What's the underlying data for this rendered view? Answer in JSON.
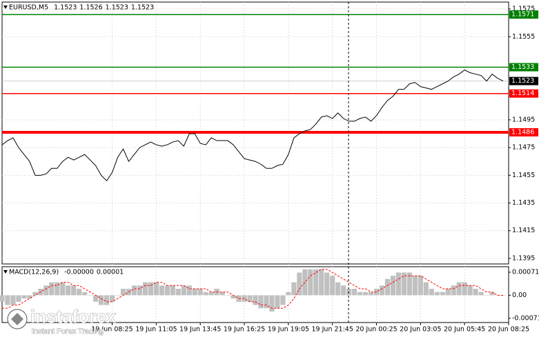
{
  "chart_data": [
    {
      "type": "line",
      "title": "EURUSD,M5",
      "quote": [
        1.1523,
        1.1526,
        1.1523,
        1.1523
      ],
      "x": [
        0,
        1,
        2,
        3,
        4,
        5,
        6,
        7,
        8,
        9,
        10,
        11,
        12,
        13,
        14,
        15,
        16,
        17,
        18,
        19,
        20,
        21,
        22,
        23,
        24,
        25,
        26,
        27,
        28,
        29,
        30,
        31,
        32,
        33,
        34,
        35,
        36,
        37,
        38,
        39,
        40,
        41,
        42,
        43,
        44,
        45,
        46,
        47,
        48,
        49,
        50,
        51,
        52,
        53,
        54,
        55,
        56,
        57,
        58,
        59,
        60,
        61,
        62,
        63,
        64,
        65,
        66,
        67,
        68,
        69,
        70,
        71,
        72,
        73,
        74,
        75,
        76,
        77,
        78,
        79,
        80,
        81,
        82,
        83,
        84,
        85,
        86,
        87,
        88,
        89,
        90,
        91
      ],
      "series": [
        {
          "color": "#000000",
          "values": [
            1.1477,
            1.148,
            1.1482,
            1.1475,
            1.147,
            1.1465,
            1.1455,
            1.1455,
            1.1456,
            1.146,
            1.146,
            1.1465,
            1.1468,
            1.1466,
            1.1468,
            1.147,
            1.1466,
            1.1462,
            1.1455,
            1.1451,
            1.1457,
            1.1468,
            1.1474,
            1.1465,
            1.147,
            1.1475,
            1.1477,
            1.1479,
            1.1477,
            1.1476,
            1.1477,
            1.1479,
            1.148,
            1.1476,
            1.1485,
            1.1485,
            1.1478,
            1.1477,
            1.1482,
            1.148,
            1.148,
            1.148,
            1.1477,
            1.1472,
            1.1467,
            1.1466,
            1.1465,
            1.1463,
            1.146,
            1.146,
            1.1462,
            1.1463,
            1.147,
            1.1482,
            1.1485,
            1.1487,
            1.1488,
            1.1492,
            1.1497,
            1.1498,
            1.1496,
            1.15,
            1.1496,
            1.1494,
            1.1494,
            1.1496,
            1.1497,
            1.1494,
            1.1498,
            1.1504,
            1.1509,
            1.1512,
            1.1517,
            1.1517,
            1.1521,
            1.1522,
            1.1519,
            1.1518,
            1.1517,
            1.1519,
            1.1521,
            1.1523,
            1.1526,
            1.1528,
            1.1531,
            1.1529,
            1.1528,
            1.1527,
            1.1523,
            1.1528,
            1.1525,
            1.1523
          ]
        }
      ],
      "levels": [
        {
          "value": 1.1571,
          "color": "#008000",
          "bold": false
        },
        {
          "value": 1.1533,
          "color": "#008000",
          "bold": false
        },
        {
          "value": 1.1514,
          "color": "#ff0000",
          "bold": false
        },
        {
          "value": 1.1486,
          "color": "#ff0000",
          "bold": true
        }
      ],
      "last_price": 1.1523,
      "xlim": [
        0,
        92
      ],
      "ylim": [
        1.1391,
        1.158
      ],
      "yticks": [
        1.1575,
        1.1555,
        1.1495,
        1.1475,
        1.1455,
        1.1435,
        1.1415,
        1.1395
      ],
      "xticks": [
        {
          "value": 20,
          "label": "19 Jun 08:25"
        },
        {
          "value": 28,
          "label": "19 Jun 11:05"
        },
        {
          "value": 36,
          "label": "19 Jun 13:45"
        },
        {
          "value": 44,
          "label": "19 Jun 16:25"
        },
        {
          "value": 52,
          "label": "19 Jun 19:05"
        },
        {
          "value": 60,
          "label": "19 Jun 21:45"
        },
        {
          "value": 68,
          "label": "20 Jun 00:25"
        },
        {
          "value": 76,
          "label": "20 Jun 03:05"
        },
        {
          "value": 84,
          "label": "20 Jun 05:45"
        },
        {
          "value": 92,
          "label": "20 Jun 08:25"
        }
      ],
      "grid": true
    },
    {
      "type": "bar",
      "title": "MACD(12,26,9)",
      "quote": [
        -0.0,
        1e-05
      ],
      "quote_labels": [
        "-0.00000",
        "0.00001"
      ],
      "x": [
        0,
        1,
        2,
        3,
        4,
        5,
        6,
        7,
        8,
        9,
        10,
        11,
        12,
        13,
        14,
        15,
        16,
        17,
        18,
        19,
        20,
        21,
        22,
        23,
        24,
        25,
        26,
        27,
        28,
        29,
        30,
        31,
        32,
        33,
        34,
        35,
        36,
        37,
        38,
        39,
        40,
        41,
        42,
        43,
        44,
        45,
        46,
        47,
        48,
        49,
        50,
        51,
        52,
        53,
        54,
        55,
        56,
        57,
        58,
        59,
        60,
        61,
        62,
        63,
        64,
        65,
        66,
        67,
        68,
        69,
        70,
        71,
        72,
        73,
        74,
        75,
        76,
        77,
        78,
        79,
        80,
        81,
        82,
        83,
        84,
        85,
        86,
        87,
        88,
        89,
        90,
        91
      ],
      "series": [
        {
          "color": "#c0c0c0",
          "values": [
            -0.0002,
            -0.0003,
            -0.0003,
            -0.0002,
            -0.0001,
            -0.0001,
            0.0001,
            0.0002,
            0.0003,
            0.0004,
            0.0004,
            0.0004,
            0.0003,
            0.0003,
            0.0002,
            0.0001,
            0.0,
            -0.0002,
            -0.0003,
            -0.0003,
            -0.0002,
            0.0,
            0.0002,
            0.0002,
            0.0003,
            0.0003,
            0.0004,
            0.0004,
            0.0004,
            0.0003,
            0.0003,
            0.0003,
            0.0002,
            0.0003,
            0.0003,
            0.0002,
            0.0002,
            0.0001,
            0.0001,
            0.0002,
            0.0001,
            0.0,
            -0.0001,
            -0.0002,
            -0.0002,
            -0.0002,
            -0.0003,
            -0.0004,
            -0.0004,
            -0.0005,
            -0.0004,
            -0.0003,
            0.0001,
            0.0004,
            0.0007,
            0.0008,
            0.0008,
            0.0008,
            0.0008,
            0.0007,
            0.0006,
            0.0004,
            0.0003,
            0.0002,
            0.0002,
            0.0001,
            0.0001,
            0.0001,
            0.0002,
            0.0003,
            0.0005,
            0.0006,
            0.0007,
            0.0007,
            0.0007,
            0.0006,
            0.0006,
            0.0004,
            0.0002,
            0.0001,
            0.0001,
            0.0002,
            0.0003,
            0.0004,
            0.0004,
            0.0003,
            0.0002,
            0.0001,
            0.0,
            0.0001,
            0.0,
            0.0
          ]
        },
        {
          "color": "#ff0000",
          "type": "line",
          "values": [
            -0.0004,
            -0.0004,
            -0.0003,
            -0.0003,
            -0.0002,
            -0.0001,
            0.0,
            0.0001,
            0.0002,
            0.0003,
            0.0003,
            0.0004,
            0.0004,
            0.0003,
            0.0003,
            0.0002,
            0.0001,
            0.0,
            -0.0001,
            -0.0002,
            -0.0002,
            -0.0001,
            0.0,
            0.0001,
            0.0002,
            0.0002,
            0.0003,
            0.0003,
            0.0004,
            0.0004,
            0.0003,
            0.0003,
            0.0003,
            0.0003,
            0.0002,
            0.0002,
            0.0002,
            0.0002,
            0.0001,
            0.0001,
            0.0001,
            0.0001,
            0.0,
            -0.0001,
            -0.0001,
            -0.0002,
            -0.0002,
            -0.0003,
            -0.0003,
            -0.0004,
            -0.0004,
            -0.0004,
            -0.0003,
            -0.0001,
            0.0002,
            0.0004,
            0.0006,
            0.0007,
            0.0008,
            0.0008,
            0.0007,
            0.0006,
            0.0005,
            0.0004,
            0.0003,
            0.0002,
            0.0002,
            0.0001,
            0.0001,
            0.0002,
            0.0003,
            0.0004,
            0.0005,
            0.0006,
            0.0006,
            0.0006,
            0.0006,
            0.0005,
            0.0004,
            0.0003,
            0.0002,
            0.0002,
            0.0002,
            0.0003,
            0.0003,
            0.0003,
            0.0003,
            0.0002,
            0.0001,
            0.0001,
            0.0,
            0.0
          ]
        }
      ],
      "xlim": [
        0,
        92
      ],
      "ylim": [
        -0.00084,
        0.00088
      ],
      "yticks": [
        0.00071,
        {
          "value": 0,
          "label": "0.00"
        },
        -0.00071
      ]
    }
  ],
  "watermark": {
    "brand": "instaforex",
    "tagline": "Instant Forex Trading"
  }
}
